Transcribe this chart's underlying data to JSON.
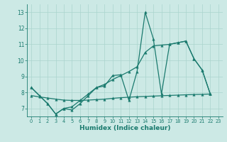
{
  "title": "",
  "xlabel": "Humidex (Indice chaleur)",
  "bg_color": "#cce9e5",
  "line_color": "#1a7a6e",
  "grid_color": "#aad4ce",
  "xlim": [
    -0.5,
    23.5
  ],
  "ylim": [
    6.5,
    13.5
  ],
  "xticks": [
    0,
    1,
    2,
    3,
    4,
    5,
    6,
    7,
    8,
    9,
    10,
    11,
    12,
    13,
    14,
    15,
    16,
    17,
    18,
    19,
    20,
    21,
    22,
    23
  ],
  "yticks": [
    7,
    8,
    9,
    10,
    11,
    12,
    13
  ],
  "line1_x": [
    0,
    1,
    2,
    3,
    4,
    5,
    6,
    7,
    8,
    9,
    10,
    11,
    12,
    13,
    14,
    15,
    16,
    17,
    18,
    19,
    20,
    21,
    22
  ],
  "line1_y": [
    8.3,
    7.8,
    7.3,
    6.65,
    7.0,
    6.9,
    7.3,
    7.8,
    8.3,
    8.4,
    9.05,
    9.1,
    7.5,
    9.3,
    13.0,
    11.35,
    7.9,
    11.0,
    11.1,
    11.2,
    10.1,
    9.4,
    7.9
  ],
  "line2_x": [
    0,
    1,
    2,
    3,
    4,
    5,
    6,
    7,
    8,
    9,
    10,
    11,
    12,
    13,
    14,
    15,
    16,
    17,
    18,
    19,
    20,
    21,
    22
  ],
  "line2_y": [
    8.3,
    7.8,
    7.3,
    6.65,
    7.0,
    7.1,
    7.5,
    7.9,
    8.3,
    8.5,
    8.8,
    9.05,
    9.3,
    9.6,
    10.5,
    10.9,
    10.95,
    11.0,
    11.1,
    11.2,
    10.1,
    9.4,
    7.9
  ],
  "line3_x": [
    0,
    1,
    2,
    3,
    4,
    5,
    6,
    7,
    8,
    9,
    10,
    11,
    12,
    13,
    14,
    15,
    16,
    17,
    18,
    19,
    20,
    21,
    22
  ],
  "line3_y": [
    7.8,
    7.72,
    7.65,
    7.58,
    7.52,
    7.5,
    7.5,
    7.52,
    7.55,
    7.58,
    7.63,
    7.67,
    7.7,
    7.73,
    7.75,
    7.77,
    7.79,
    7.81,
    7.83,
    7.85,
    7.87,
    7.88,
    7.9
  ],
  "markersize": 2.5,
  "linewidth": 0.9
}
